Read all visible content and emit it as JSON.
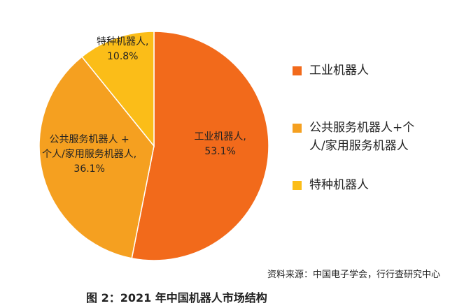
{
  "chart_data": {
    "type": "pie",
    "categories": [
      "工业机器人",
      "公共服务机器人+个人/家用服务机器人",
      "特种机器人"
    ],
    "values": [
      53.1,
      36.1,
      10.8
    ],
    "value_labels": [
      "53.1%",
      "36.1%",
      "10.8%"
    ],
    "slice_labels": [
      [
        "工业机器人,"
      ],
      [
        "公共服务机器人 +",
        "个人/家用服务机器人,"
      ],
      [
        "特种机器人,"
      ]
    ],
    "colors": [
      "#f26a1b",
      "#f5a020",
      "#fbbd18"
    ],
    "source": "资料来源：中国电子学会，行行查研究中心",
    "caption": "图 2：2021 年中国机器人市场结构"
  }
}
